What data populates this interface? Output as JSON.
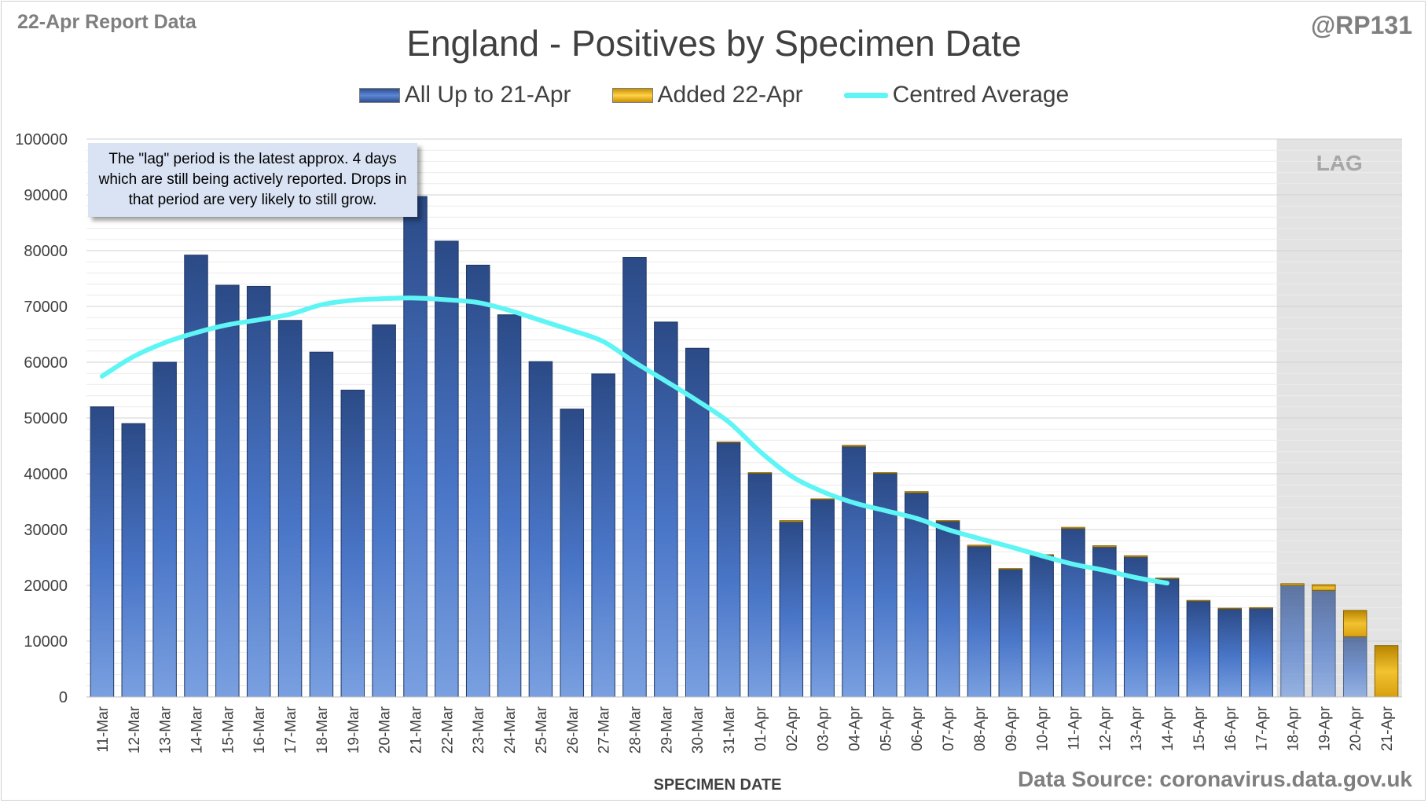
{
  "header": {
    "report_label": "22-Apr Report Data",
    "handle": "@RP131",
    "title": "England - Positives by Specimen Date"
  },
  "legend": {
    "items": [
      {
        "label": "All Up to 21-Apr",
        "color": "#4472c4"
      },
      {
        "label": "Added 22-Apr",
        "color": "#ffc000"
      },
      {
        "label": "Centred Average",
        "color": "#5ff5f5"
      }
    ]
  },
  "annotation": {
    "note": "The \"lag\" period is the latest approx. 4 days which are still being actively reported.  Drops in that period are very likely to still grow.",
    "lag_label": "LAG"
  },
  "footer": {
    "source": "Data Source: coronavirus.data.gov.uk"
  },
  "chart_data": {
    "type": "bar",
    "stacked": true,
    "title": "England - Positives by Specimen Date",
    "xlabel": "SPECIMEN DATE",
    "ylabel": "",
    "ylim": [
      0,
      100000
    ],
    "yticks": [
      0,
      10000,
      20000,
      30000,
      40000,
      50000,
      60000,
      70000,
      80000,
      90000,
      100000
    ],
    "grid": true,
    "legend_position": "top",
    "lag_start_category": "18-Apr",
    "categories": [
      "11-Mar",
      "12-Mar",
      "13-Mar",
      "14-Mar",
      "15-Mar",
      "16-Mar",
      "17-Mar",
      "18-Mar",
      "19-Mar",
      "20-Mar",
      "21-Mar",
      "22-Mar",
      "23-Mar",
      "24-Mar",
      "25-Mar",
      "26-Mar",
      "27-Mar",
      "28-Mar",
      "29-Mar",
      "30-Mar",
      "31-Mar",
      "01-Apr",
      "02-Apr",
      "03-Apr",
      "04-Apr",
      "05-Apr",
      "06-Apr",
      "07-Apr",
      "08-Apr",
      "09-Apr",
      "10-Apr",
      "11-Apr",
      "12-Apr",
      "13-Apr",
      "14-Apr",
      "15-Apr",
      "16-Apr",
      "17-Apr",
      "18-Apr",
      "19-Apr",
      "20-Apr",
      "21-Apr"
    ],
    "series": [
      {
        "name": "All Up to 21-Apr",
        "color": "#2e4e8e",
        "values": [
          52000,
          49000,
          60000,
          79200,
          73800,
          73600,
          67500,
          61800,
          55000,
          66700,
          89700,
          81700,
          77400,
          68500,
          60100,
          51600,
          57900,
          78800,
          67200,
          62500,
          45600,
          40100,
          31400,
          35400,
          44900,
          40100,
          36600,
          31500,
          27000,
          22900,
          25400,
          30200,
          26900,
          25100,
          21200,
          17200,
          15800,
          15900,
          20000,
          19100,
          10800,
          0
        ]
      },
      {
        "name": "Added 22-Apr",
        "color": "#e2aa10",
        "values": [
          0,
          0,
          0,
          0,
          0,
          0,
          0,
          0,
          0,
          0,
          0,
          0,
          0,
          0,
          0,
          0,
          0,
          0,
          0,
          0,
          100,
          100,
          200,
          100,
          200,
          100,
          200,
          100,
          200,
          100,
          100,
          200,
          200,
          200,
          100,
          100,
          100,
          100,
          300,
          1000,
          4700,
          9200
        ]
      },
      {
        "name": "Centred Average",
        "type": "line",
        "color": "#5ff5f5",
        "values": [
          57500,
          61000,
          63500,
          65300,
          66700,
          67600,
          68600,
          70300,
          71100,
          71400,
          71500,
          71200,
          70700,
          69300,
          67500,
          65700,
          63700,
          60000,
          56600,
          53100,
          49300,
          44000,
          39600,
          36800,
          34800,
          33400,
          32000,
          30000,
          28400,
          26900,
          25300,
          23800,
          22700,
          21400,
          20400,
          null,
          null,
          null,
          null,
          null,
          null,
          null
        ]
      }
    ]
  }
}
